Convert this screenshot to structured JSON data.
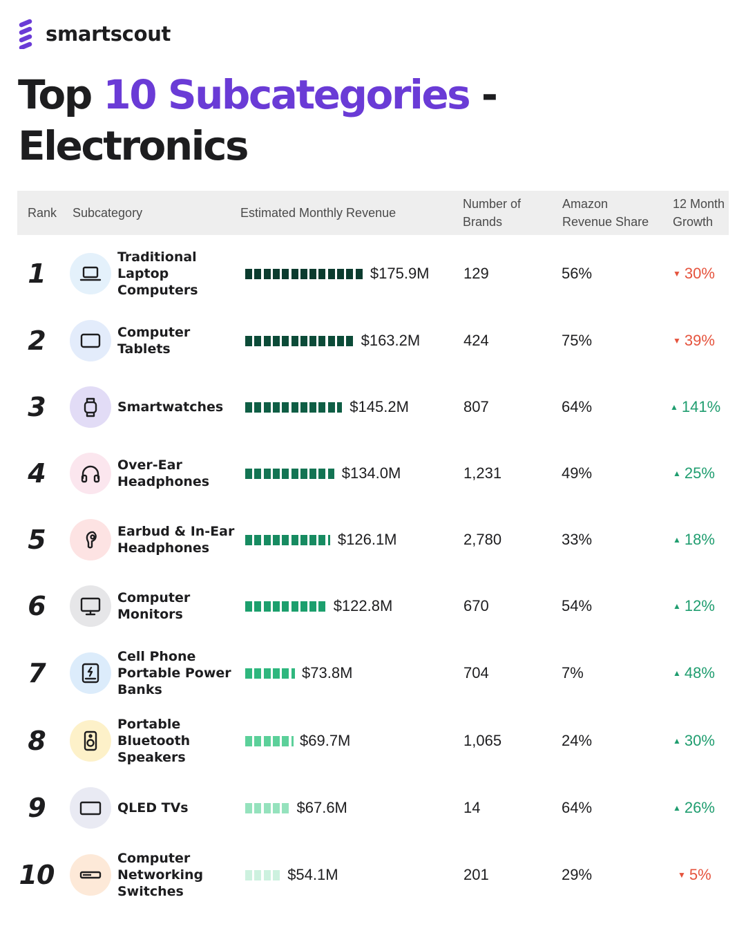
{
  "brand": {
    "name": "smartscout",
    "logo_color": "#6a3bd6"
  },
  "title": {
    "prefix": "Top ",
    "highlight": "10 Subcategories",
    "suffix": " -",
    "line2": "Electronics"
  },
  "columns": {
    "rank": "Rank",
    "subcategory": "Subcategory",
    "revenue": "Estimated Monthly Revenue",
    "brands": "Number of\nBrands",
    "share": "Amazon\nRevenue Share",
    "growth": "12 Month\nGrowth"
  },
  "colors": {
    "growth_up": "#1f9d6f",
    "growth_down": "#e5533d",
    "accent": "#6a3bd6"
  },
  "chart_data": {
    "type": "table",
    "title": "Top 10 Subcategories - Electronics",
    "unit": "USD millions",
    "rows": [
      {
        "rank": "1",
        "name": "Traditional Laptop Computers",
        "icon": "laptop-icon",
        "icon_bg": "#e4f1fb",
        "revenue": 175.9,
        "revenue_label": "$175.9M",
        "brands": "129",
        "share": "56%",
        "growth": "30%",
        "growth_dir": "down",
        "bar_color": "#0b3b2e"
      },
      {
        "rank": "2",
        "name": "Computer Tablets",
        "icon": "tablet-icon",
        "icon_bg": "#e3ecfb",
        "revenue": 163.2,
        "revenue_label": "$163.2M",
        "brands": "424",
        "share": "75%",
        "growth": "39%",
        "growth_dir": "down",
        "bar_color": "#0c4b38"
      },
      {
        "rank": "3",
        "name": "Smartwatches",
        "icon": "smartwatch-icon",
        "icon_bg": "#e2dcf6",
        "revenue": 145.2,
        "revenue_label": "$145.2M",
        "brands": "807",
        "share": "64%",
        "growth": "141%",
        "growth_dir": "up",
        "bar_color": "#0f5e45"
      },
      {
        "rank": "4",
        "name": "Over-Ear Headphones",
        "icon": "headphones-icon",
        "icon_bg": "#fbe6ee",
        "revenue": 134.0,
        "revenue_label": "$134.0M",
        "brands": "1,231",
        "share": "49%",
        "growth": "25%",
        "growth_dir": "up",
        "bar_color": "#137453"
      },
      {
        "rank": "5",
        "name": "Earbud & In-Ear Headphones",
        "icon": "earbud-icon",
        "icon_bg": "#fde3e3",
        "revenue": 126.1,
        "revenue_label": "$126.1M",
        "brands": "2,780",
        "share": "33%",
        "growth": "18%",
        "growth_dir": "up",
        "bar_color": "#178b61"
      },
      {
        "rank": "6",
        "name": "Computer Monitors",
        "icon": "monitor-icon",
        "icon_bg": "#e6e6e8",
        "revenue": 122.8,
        "revenue_label": "$122.8M",
        "brands": "670",
        "share": "54%",
        "growth": "12%",
        "growth_dir": "up",
        "bar_color": "#1c9f6d"
      },
      {
        "rank": "7",
        "name": "Cell Phone Portable Power Banks",
        "icon": "power-bank-icon",
        "icon_bg": "#dcecfb",
        "revenue": 73.8,
        "revenue_label": "$73.8M",
        "brands": "704",
        "share": "7%",
        "growth": "48%",
        "growth_dir": "up",
        "bar_color": "#2fb77e"
      },
      {
        "rank": "8",
        "name": "Portable Bluetooth Speakers",
        "icon": "speaker-icon",
        "icon_bg": "#fdf1c9",
        "revenue": 69.7,
        "revenue_label": "$69.7M",
        "brands": "1,065",
        "share": "24%",
        "growth": "30%",
        "growth_dir": "up",
        "bar_color": "#5cd09a"
      },
      {
        "rank": "9",
        "name": "QLED TVs",
        "icon": "tv-icon",
        "icon_bg": "#e9eaf3",
        "revenue": 67.6,
        "revenue_label": "$67.6M",
        "brands": "14",
        "share": "64%",
        "growth": "26%",
        "growth_dir": "up",
        "bar_color": "#95e2bd"
      },
      {
        "rank": "10",
        "name": "Computer Networking Switches",
        "icon": "network-switch-icon",
        "icon_bg": "#fde9d8",
        "revenue": 54.1,
        "revenue_label": "$54.1M",
        "brands": "201",
        "share": "29%",
        "growth": "5%",
        "growth_dir": "down",
        "bar_color": "#cdf1df"
      }
    ]
  }
}
